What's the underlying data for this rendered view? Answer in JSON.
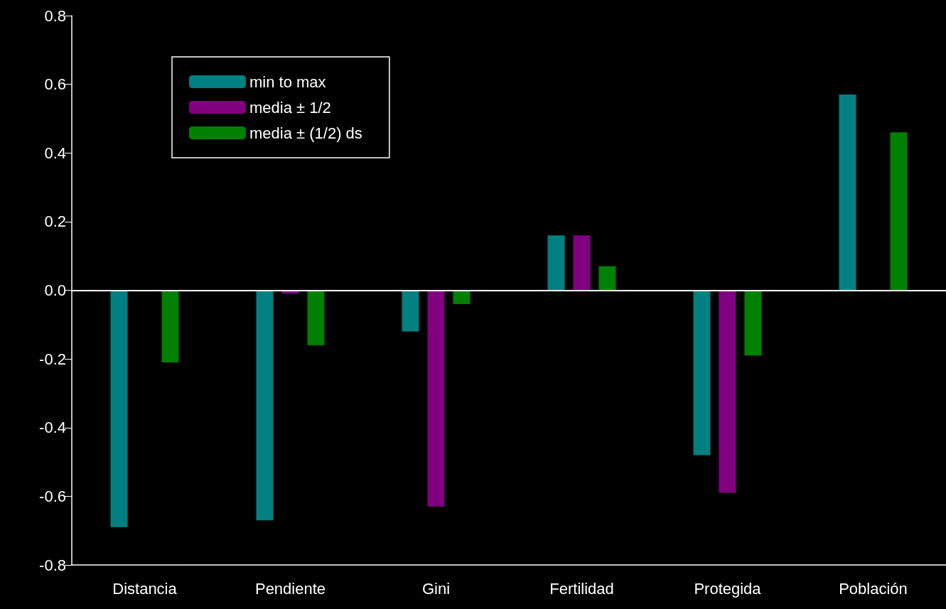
{
  "chart_data": {
    "type": "bar",
    "categories": [
      "Distancia",
      "Pendiente",
      "Gini",
      "Fertilidad",
      "Protegida",
      "Población"
    ],
    "series": [
      {
        "name": "min to max",
        "color": "#008080",
        "values": [
          -0.69,
          -0.67,
          -0.12,
          0.16,
          -0.48,
          0.57
        ]
      },
      {
        "name": "media ± 1/2",
        "color": "#800080",
        "values": [
          null,
          -0.01,
          -0.63,
          0.16,
          -0.59,
          null
        ]
      },
      {
        "name": "media ± (1/2) ds",
        "color": "#008000",
        "values": [
          -0.21,
          -0.16,
          -0.04,
          0.07,
          -0.19,
          0.46
        ]
      }
    ],
    "ylim": [
      -0.8,
      0.8
    ],
    "yticks": [
      {
        "value": -0.8,
        "label": "-0.8"
      },
      {
        "value": -0.6,
        "label": "-0.6"
      },
      {
        "value": -0.4,
        "label": "-0.4"
      },
      {
        "value": -0.2,
        "label": "-0.2"
      },
      {
        "value": 0,
        "label": "0.0"
      },
      {
        "value": 0.2,
        "label": "0.2"
      },
      {
        "value": 0.4,
        "label": "0.4"
      },
      {
        "value": 0.6,
        "label": "0.6"
      },
      {
        "value": 0.8,
        "label": "0.8"
      }
    ],
    "ref_lines": [
      {
        "axis": "y",
        "value": 0,
        "color": "#ffffff"
      }
    ],
    "grid": false,
    "legend": "top left"
  }
}
